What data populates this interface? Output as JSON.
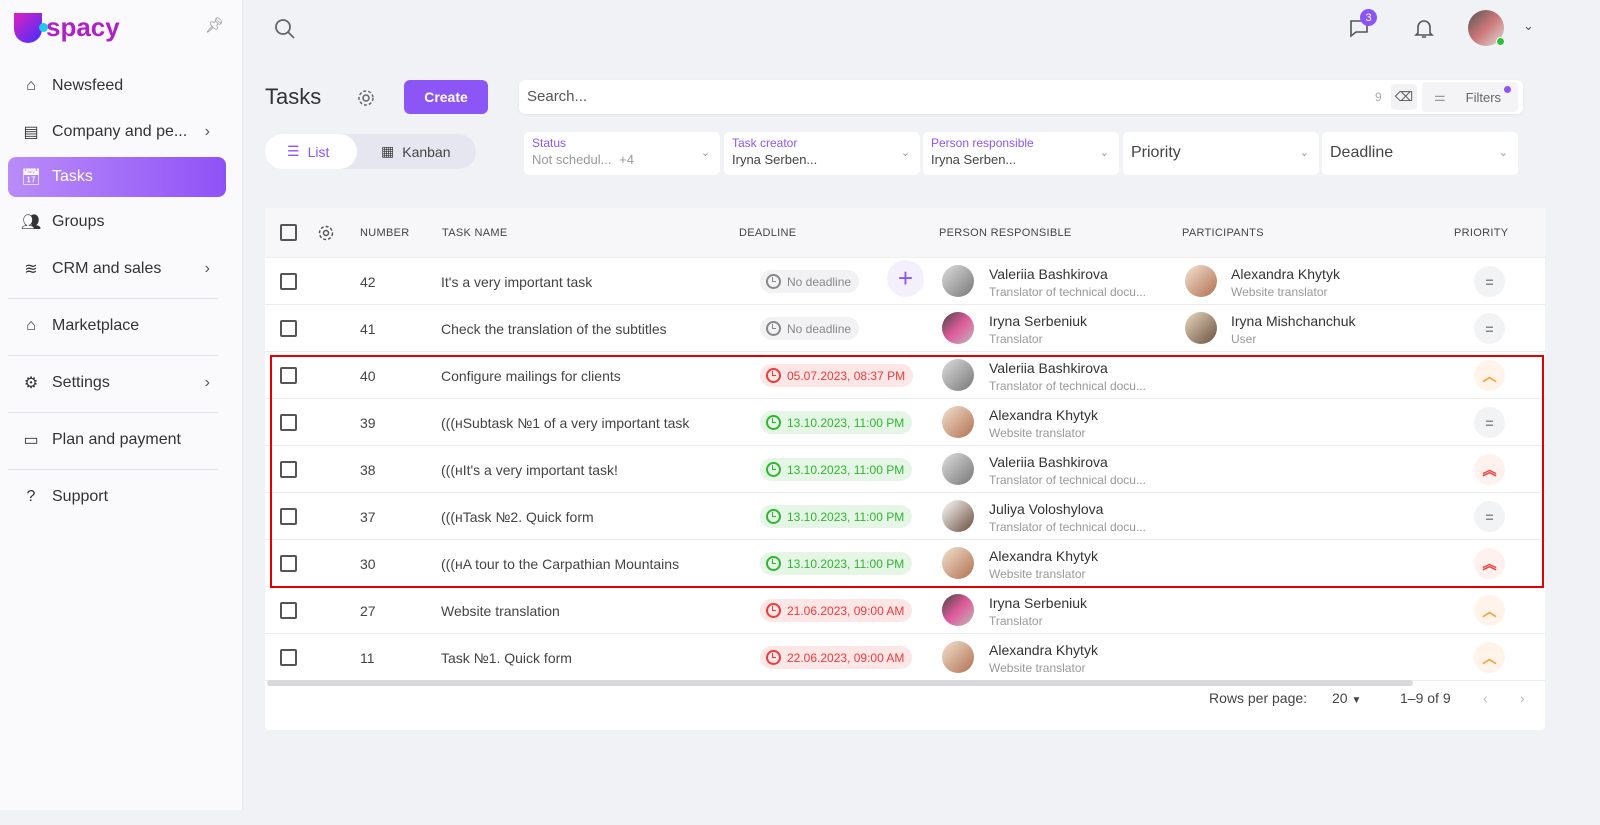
{
  "app": {
    "logo": "spacy",
    "brand_color": "#8b56f5"
  },
  "sidebar": {
    "items": [
      {
        "label": "Newsfeed",
        "icon": "home-icon"
      },
      {
        "label": "Company and pe...",
        "icon": "building-icon",
        "chevron": true
      },
      {
        "label": "Tasks",
        "icon": "calendar-check-icon",
        "active": true
      },
      {
        "label": "Groups",
        "icon": "users-icon"
      },
      {
        "label": "CRM and sales",
        "icon": "database-icon",
        "chevron": true
      },
      {
        "label": "Marketplace",
        "icon": "store-icon"
      },
      {
        "label": "Settings",
        "icon": "gear-icon",
        "chevron": true
      },
      {
        "label": "Plan and payment",
        "icon": "wallet-icon"
      },
      {
        "label": "Support",
        "icon": "help-icon"
      }
    ]
  },
  "topbar": {
    "messages_badge": "3"
  },
  "page": {
    "title": "Tasks",
    "create_label": "Create",
    "search_placeholder": "Search...",
    "search_count": "9",
    "filters_label": "Filters",
    "view_list": "List",
    "view_kanban": "Kanban"
  },
  "filters": [
    {
      "label": "Status",
      "value": "Not schedul...",
      "extra": "+4"
    },
    {
      "label": "Task creator",
      "value": "Iryna Serben..."
    },
    {
      "label": "Person responsible",
      "value": "Iryna Serben..."
    },
    {
      "label": "",
      "value": "Priority"
    },
    {
      "label": "",
      "value": "Deadline"
    }
  ],
  "table": {
    "columns": [
      "NUMBER",
      "TASK NAME",
      "DEADLINE",
      "PERSON RESPONSIBLE",
      "PARTICIPANTS",
      "PRIORITY"
    ],
    "rows": [
      {
        "number": "42",
        "name": "It's a very important task",
        "deadline": "No deadline",
        "deadline_state": "none",
        "person": "Valeriia Bashkirova",
        "role": "Translator of technical docu...",
        "participant": "Alexandra Khytyk",
        "participant_role": "Website translator",
        "priority": "normal"
      },
      {
        "number": "41",
        "name": "Check the translation of the subtitles",
        "deadline": "No deadline",
        "deadline_state": "none",
        "person": "Iryna Serbeniuk",
        "role": "Translator",
        "participant": "Iryna Mishchanchuk",
        "participant_role": "User",
        "priority": "normal"
      },
      {
        "number": "40",
        "name": "Configure mailings for clients",
        "deadline": "05.07.2023, 08:37 PM",
        "deadline_state": "over",
        "person": "Valeriia Bashkirova",
        "role": "Translator of technical docu...",
        "priority": "high"
      },
      {
        "number": "39",
        "name": "(((нSubtask №1 of a very important task",
        "deadline": "13.10.2023, 11:00 PM",
        "deadline_state": "ok",
        "person": "Alexandra Khytyk",
        "role": "Website translator",
        "priority": "normal"
      },
      {
        "number": "38",
        "name": "(((нIt's a very important task!",
        "deadline": "13.10.2023, 11:00 PM",
        "deadline_state": "ok",
        "person": "Valeriia Bashkirova",
        "role": "Translator of technical docu...",
        "priority": "urgent"
      },
      {
        "number": "37",
        "name": "(((нTask №2. Quick form",
        "deadline": "13.10.2023, 11:00 PM",
        "deadline_state": "ok",
        "person": "Juliya Voloshylova",
        "role": "Translator of technical docu...",
        "priority": "normal"
      },
      {
        "number": "30",
        "name": "(((нA tour to the Carpathian Mountains",
        "deadline": "13.10.2023, 11:00 PM",
        "deadline_state": "ok",
        "person": "Alexandra Khytyk",
        "role": "Website translator",
        "priority": "urgent"
      },
      {
        "number": "27",
        "name": "Website translation",
        "deadline": "21.06.2023, 09:00 AM",
        "deadline_state": "over",
        "person": "Iryna Serbeniuk",
        "role": "Translator",
        "priority": "high"
      },
      {
        "number": "11",
        "name": "Task №1. Quick form",
        "deadline": "22.06.2023, 09:00 AM",
        "deadline_state": "over",
        "person": "Alexandra Khytyk",
        "role": "Website translator",
        "priority": "high"
      }
    ]
  },
  "pagination": {
    "rows_per_page_label": "Rows per page:",
    "rows_per_page": "20",
    "range": "1–9 of 9"
  }
}
